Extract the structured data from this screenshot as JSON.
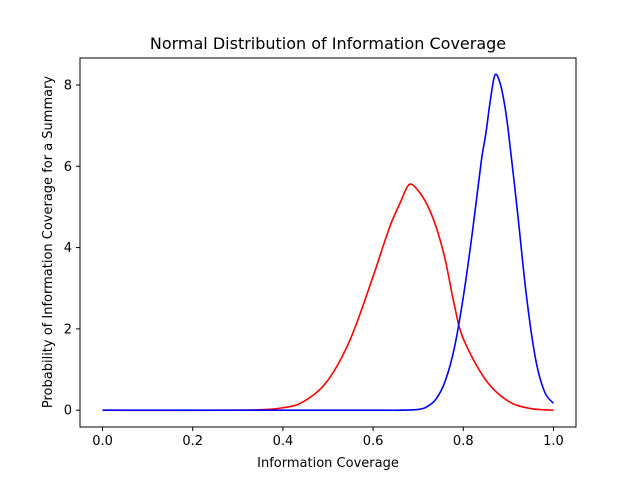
{
  "chart_data": {
    "type": "line",
    "title": "Normal Distribution of Information Coverage",
    "xlabel": "Information Coverage",
    "ylabel": "Probability of Information Coverage for a Summary",
    "xlim": [
      -0.05,
      1.05
    ],
    "ylim": [
      -0.413,
      8.663
    ],
    "xticks": [
      {
        "value": 0.0,
        "label": "0.0"
      },
      {
        "value": 0.2,
        "label": "0.2"
      },
      {
        "value": 0.4,
        "label": "0.4"
      },
      {
        "value": 0.6,
        "label": "0.6"
      },
      {
        "value": 0.8,
        "label": "0.8"
      },
      {
        "value": 1.0,
        "label": "1.0"
      }
    ],
    "yticks": [
      {
        "value": 0,
        "label": "0"
      },
      {
        "value": 2,
        "label": "2"
      },
      {
        "value": 4,
        "label": "4"
      },
      {
        "value": 6,
        "label": "6"
      },
      {
        "value": 8,
        "label": "8"
      }
    ],
    "grid": false,
    "series": [
      {
        "color": "#ff0000",
        "x": [
          0.0,
          0.3,
          0.4,
          0.45,
          0.5,
          0.55,
          0.6,
          0.62,
          0.64,
          0.66,
          0.68,
          0.7,
          0.72,
          0.74,
          0.76,
          0.78,
          0.8,
          0.85,
          0.9,
          0.95,
          1.0
        ],
        "y": [
          0.0,
          0.0,
          0.06,
          0.24,
          0.74,
          1.76,
          3.29,
          3.96,
          4.6,
          5.1,
          5.55,
          5.4,
          5.05,
          4.5,
          3.7,
          2.6,
          1.76,
          0.74,
          0.22,
          0.04,
          0.0
        ]
      },
      {
        "color": "#0000ff",
        "x": [
          0.0,
          0.6,
          0.65,
          0.7,
          0.72,
          0.74,
          0.76,
          0.78,
          0.8,
          0.82,
          0.84,
          0.85,
          0.86,
          0.87,
          0.88,
          0.89,
          0.9,
          0.92,
          0.94,
          0.96,
          0.98,
          1.0
        ],
        "y": [
          0.0,
          0.0,
          0.0,
          0.02,
          0.09,
          0.28,
          0.72,
          1.52,
          2.78,
          4.36,
          6.13,
          6.8,
          7.62,
          8.24,
          8.1,
          7.62,
          6.86,
          4.9,
          2.82,
          1.28,
          0.46,
          0.17
        ]
      }
    ]
  }
}
